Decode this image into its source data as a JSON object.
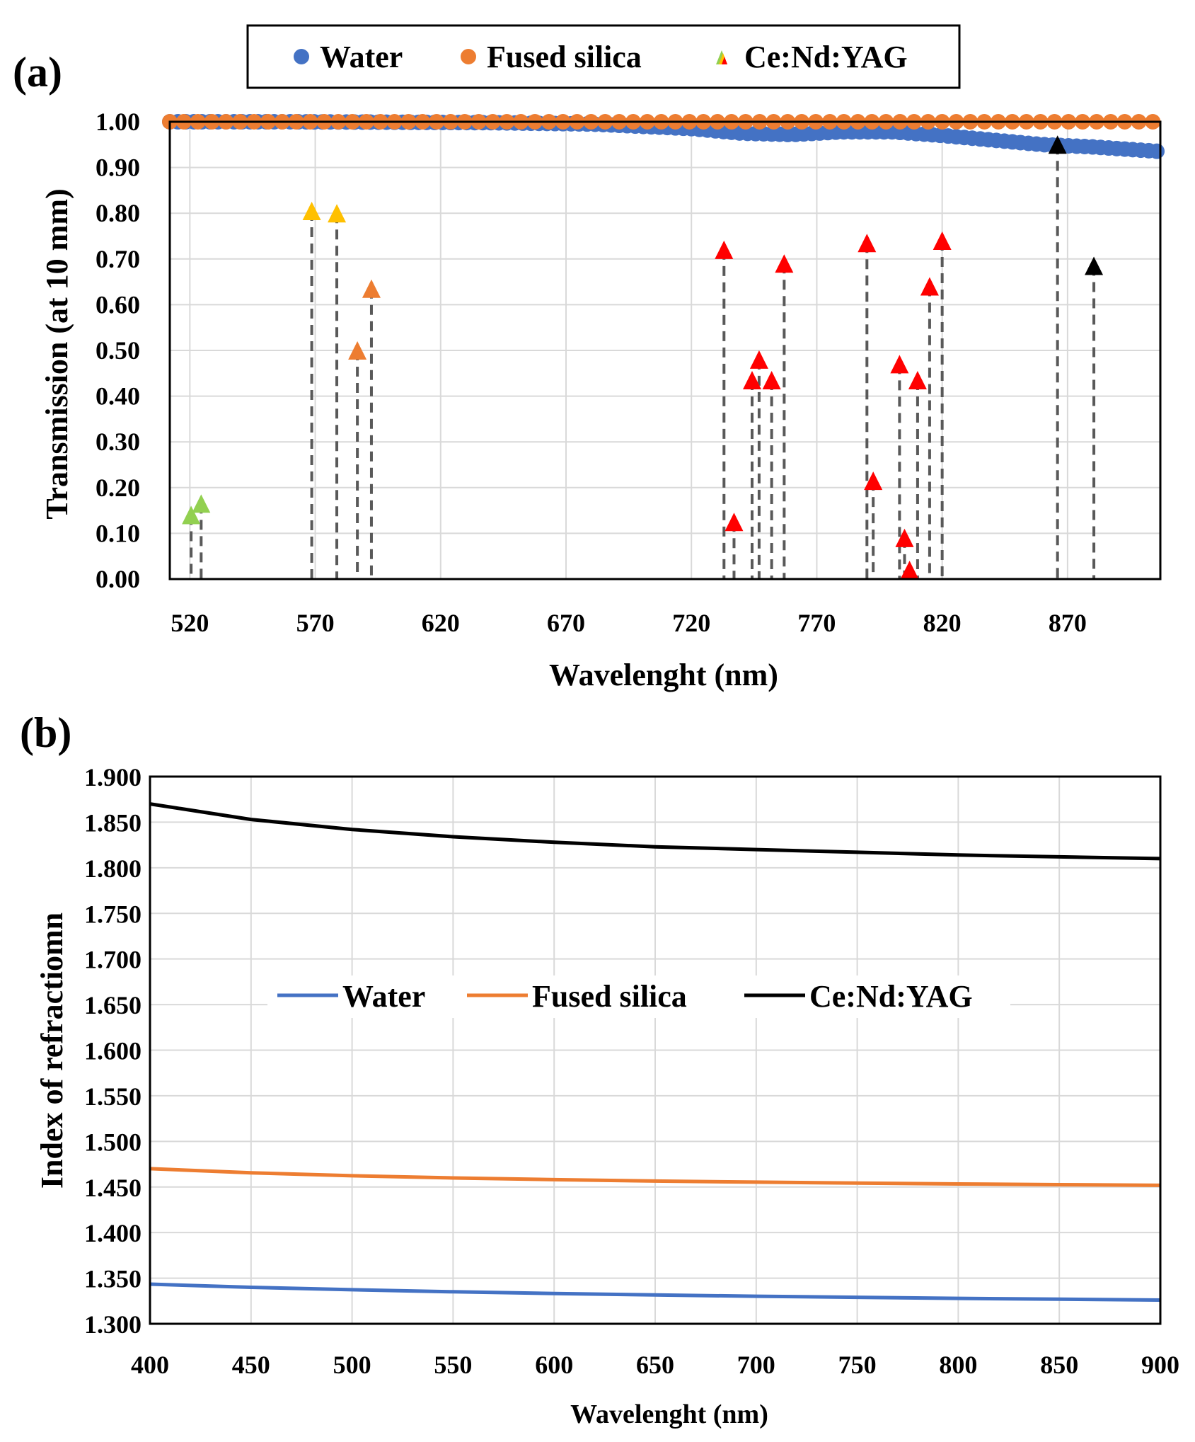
{
  "chart_data": [
    {
      "panel_label": "(a)",
      "type": "scatter",
      "xlabel": "Wavelenght (nm)",
      "ylabel": "Transmission (at 10 mm)",
      "xlim": [
        512,
        907
      ],
      "ylim": [
        0,
        1.0
      ],
      "x_ticks": [
        520,
        570,
        620,
        670,
        720,
        770,
        820,
        870
      ],
      "y_ticks": [
        "0.00",
        "0.10",
        "0.20",
        "0.30",
        "0.40",
        "0.50",
        "0.60",
        "0.70",
        "0.80",
        "0.90",
        "1.00"
      ],
      "legend": [
        "Water",
        "Fused silica",
        "Ce:Nd:YAG"
      ],
      "series": [
        {
          "name": "Water",
          "color": "#4472C4",
          "x": [
            512,
            540,
            560,
            600,
            640,
            680,
            700,
            720,
            740,
            760,
            780,
            800,
            820,
            840,
            860,
            880,
            907
          ],
          "y": [
            1.0,
            1.0,
            1.0,
            0.999,
            0.998,
            0.995,
            0.99,
            0.985,
            0.975,
            0.972,
            0.978,
            0.978,
            0.97,
            0.96,
            0.95,
            0.945,
            0.935
          ]
        },
        {
          "name": "Fused silica",
          "color": "#ED7D31",
          "x": [
            512,
            907
          ],
          "y": [
            1.0,
            1.0
          ]
        },
        {
          "name": "Ce:Nd:YAG",
          "stems": true,
          "points": [
            {
              "x": 520.5,
              "y": 0.14,
              "color": "#92D050"
            },
            {
              "x": 524.5,
              "y": 0.165,
              "color": "#92D050"
            },
            {
              "x": 568.6,
              "y": 0.805,
              "color": "#FFC000"
            },
            {
              "x": 578.6,
              "y": 0.8,
              "color": "#FFC000"
            },
            {
              "x": 586.8,
              "y": 0.5,
              "color": "#ED7D31"
            },
            {
              "x": 592.4,
              "y": 0.635,
              "color": "#ED7D31"
            },
            {
              "x": 733.0,
              "y": 0.72,
              "color": "#FF0000"
            },
            {
              "x": 737.0,
              "y": 0.125,
              "color": "#FF0000"
            },
            {
              "x": 744.2,
              "y": 0.435,
              "color": "#FF0000"
            },
            {
              "x": 747.0,
              "y": 0.48,
              "color": "#FF0000"
            },
            {
              "x": 752.0,
              "y": 0.435,
              "color": "#FF0000"
            },
            {
              "x": 757.0,
              "y": 0.69,
              "color": "#FF0000"
            },
            {
              "x": 790.0,
              "y": 0.735,
              "color": "#FF0000"
            },
            {
              "x": 792.5,
              "y": 0.215,
              "color": "#FF0000"
            },
            {
              "x": 803.0,
              "y": 0.47,
              "color": "#FF0000"
            },
            {
              "x": 805.0,
              "y": 0.09,
              "color": "#FF0000"
            },
            {
              "x": 807.0,
              "y": 0.02,
              "color": "#FF0000"
            },
            {
              "x": 810.2,
              "y": 0.435,
              "color": "#FF0000"
            },
            {
              "x": 815.0,
              "y": 0.64,
              "color": "#FF0000"
            },
            {
              "x": 820.0,
              "y": 0.74,
              "color": "#FF0000"
            },
            {
              "x": 866.0,
              "y": 0.95,
              "color": "#000000"
            },
            {
              "x": 880.5,
              "y": 0.685,
              "color": "#000000"
            }
          ]
        }
      ]
    },
    {
      "panel_label": "(b)",
      "type": "line",
      "xlabel": "Wavelenght (nm)",
      "ylabel": "Index of refractiomn",
      "xlim": [
        400,
        900
      ],
      "ylim": [
        1.3,
        1.9
      ],
      "x_ticks": [
        "400",
        "450",
        "500",
        "550",
        "600",
        "650",
        "700",
        "750",
        "800",
        "850",
        "900"
      ],
      "y_ticks": [
        "1.300",
        "1.350",
        "1.400",
        "1.450",
        "1.500",
        "1.550",
        "1.600",
        "1.650",
        "1.700",
        "1.750",
        "1.800",
        "1.850",
        "1.900"
      ],
      "legend": [
        "Water",
        "Fused silica",
        "Ce:Nd:YAG"
      ],
      "x": [
        400,
        450,
        500,
        550,
        600,
        650,
        700,
        750,
        800,
        850,
        900
      ],
      "series": [
        {
          "name": "Water",
          "color": "#4472C4",
          "values": [
            1.3435,
            1.34,
            1.3373,
            1.3351,
            1.3332,
            1.3316,
            1.3302,
            1.329,
            1.3279,
            1.3269,
            1.326
          ]
        },
        {
          "name": "Fused silica",
          "color": "#ED7D31",
          "values": [
            1.4701,
            1.4656,
            1.4623,
            1.4599,
            1.458,
            1.4565,
            1.4553,
            1.4542,
            1.4533,
            1.4525,
            1.4518
          ]
        },
        {
          "name": "Ce:Nd:YAG",
          "color": "#000000",
          "values": [
            1.87,
            1.853,
            1.842,
            1.834,
            1.828,
            1.823,
            1.82,
            1.817,
            1.814,
            1.812,
            1.81
          ]
        }
      ]
    }
  ]
}
